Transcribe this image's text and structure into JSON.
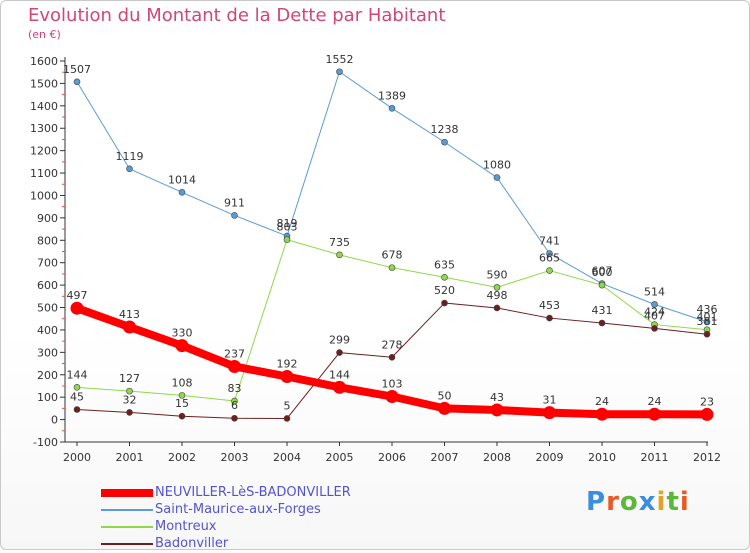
{
  "header": {
    "title": "Evolution du Montant de la Dette par Habitant",
    "subtitle": "(en €)"
  },
  "logo": {
    "text": "Proxiti",
    "colors": [
      "#3b8de0",
      "#e65a28",
      "#5cb83a",
      "#3b8de0",
      "#e6a323",
      "#5cb83a",
      "#e65a28"
    ]
  },
  "chart_data": {
    "type": "line",
    "title": "Evolution du Montant de la Dette par Habitant",
    "subtitle": "(en €)",
    "x": [
      "2000",
      "2001",
      "2002",
      "2003",
      "2004",
      "2005",
      "2006",
      "2007",
      "2008",
      "2009",
      "2010",
      "2011",
      "2012"
    ],
    "ylim": [
      -100,
      1600
    ],
    "yticks": [
      -100,
      0,
      100,
      200,
      300,
      400,
      500,
      600,
      700,
      800,
      900,
      1000,
      1100,
      1200,
      1300,
      1400,
      1500,
      1600
    ],
    "grid": false,
    "legend": "bottom-left",
    "series": [
      {
        "name": "Saint-Maurice-aux-Forges",
        "color": "#5b9bd5",
        "width": 1,
        "labels": true,
        "values": [
          1507,
          1119,
          1014,
          911,
          819,
          1552,
          1389,
          1238,
          1080,
          741,
          607,
          514,
          436
        ]
      },
      {
        "name": "Montreux",
        "color": "#8fd84a",
        "width": 1,
        "labels": true,
        "values": [
          144,
          127,
          108,
          83,
          803,
          735,
          678,
          635,
          590,
          665,
          600,
          424,
          401
        ]
      },
      {
        "name": "Badonviller",
        "color": "#6b1f1f",
        "width": 1,
        "labels": true,
        "values": [
          45,
          32,
          15,
          6,
          5,
          299,
          278,
          520,
          498,
          453,
          431,
          407,
          381
        ]
      },
      {
        "name": "NEUVILLER-LèS-BADONVILLER",
        "color": "#ff0000",
        "width": 8,
        "labels": true,
        "values": [
          497,
          413,
          330,
          237,
          192,
          144,
          103,
          50,
          43,
          31,
          24,
          24,
          23
        ]
      }
    ],
    "legend_order": [
      "NEUVILLER-LèS-BADONVILLER",
      "Saint-Maurice-aux-Forges",
      "Montreux",
      "Badonviller"
    ]
  }
}
